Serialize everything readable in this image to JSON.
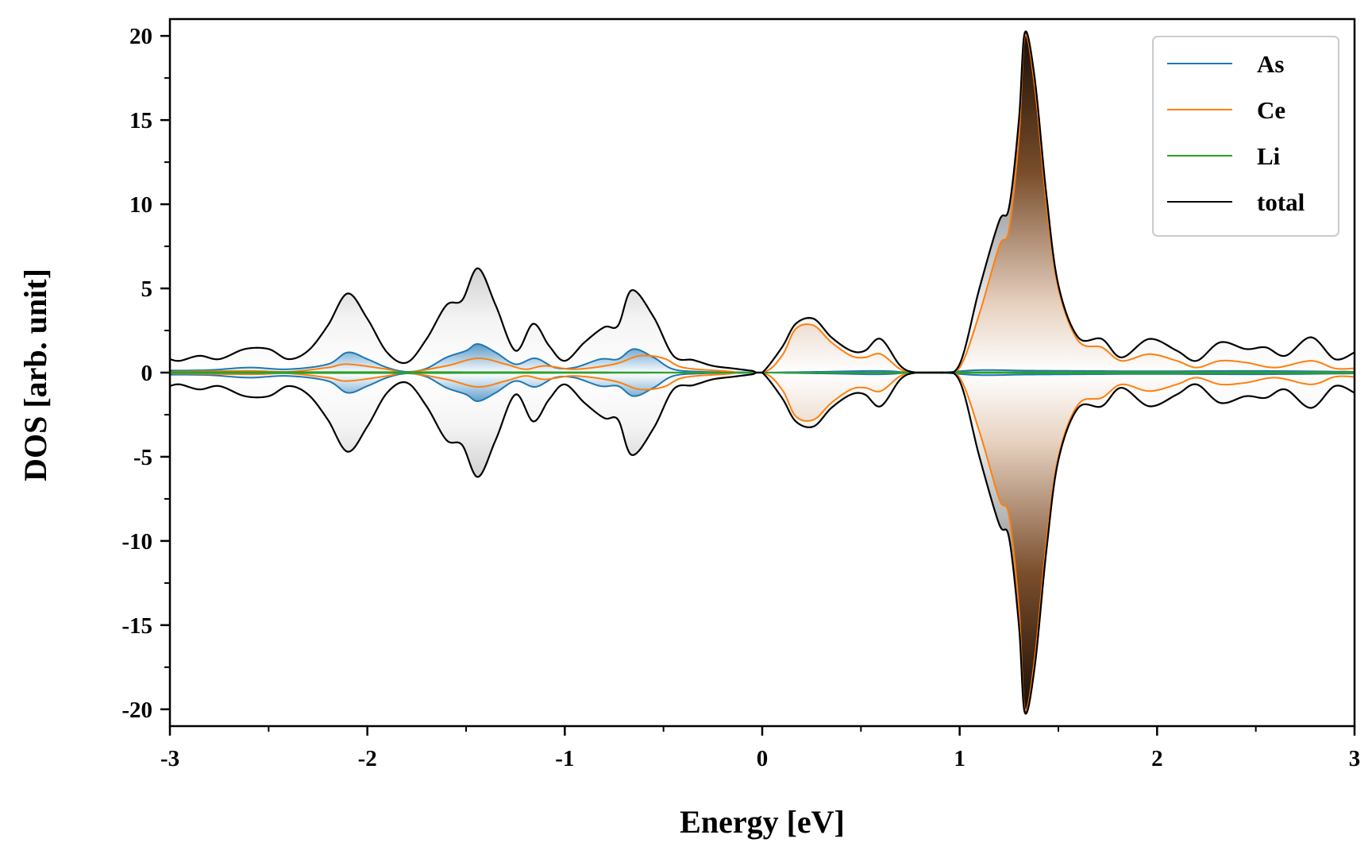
{
  "chart_data": {
    "type": "area",
    "xlabel": "Energy [eV]",
    "ylabel": "DOS [arb. unit]",
    "xlim": [
      -3,
      3
    ],
    "ylim": [
      -21,
      21
    ],
    "xticks": [
      -3,
      -2,
      -1,
      0,
      1,
      2,
      3
    ],
    "yticks": [
      -20,
      -15,
      -10,
      -5,
      0,
      5,
      10,
      15,
      20
    ],
    "grid": false,
    "legend_position": "top-right",
    "mirrored_spin_channels": true,
    "fills": {
      "total": "gray gradient, darker toward peaks",
      "Ce": "brown gradient, darker toward peaks",
      "As": "blue gradient"
    },
    "series": [
      {
        "name": "As",
        "color": "#1f77b4",
        "points": [
          [
            -3,
            0.12
          ],
          [
            -2.8,
            0.15
          ],
          [
            -2.6,
            0.3
          ],
          [
            -2.4,
            0.2
          ],
          [
            -2.2,
            0.5
          ],
          [
            -2.1,
            1.2
          ],
          [
            -2.0,
            0.8
          ],
          [
            -1.9,
            0.3
          ],
          [
            -1.8,
            0.05
          ],
          [
            -1.7,
            0.25
          ],
          [
            -1.6,
            0.9
          ],
          [
            -1.5,
            1.3
          ],
          [
            -1.44,
            1.7
          ],
          [
            -1.35,
            1.2
          ],
          [
            -1.25,
            0.5
          ],
          [
            -1.15,
            0.85
          ],
          [
            -1.05,
            0.3
          ],
          [
            -0.95,
            0.3
          ],
          [
            -0.82,
            0.8
          ],
          [
            -0.73,
            0.8
          ],
          [
            -0.65,
            1.4
          ],
          [
            -0.55,
            0.9
          ],
          [
            -0.45,
            0.2
          ],
          [
            -0.3,
            0.05
          ],
          [
            -0.1,
            0.02
          ],
          [
            0,
            0
          ],
          [
            0.3,
            0.05
          ],
          [
            0.6,
            0.1
          ],
          [
            0.75,
            0
          ],
          [
            0.9,
            0
          ],
          [
            1.1,
            0.15
          ],
          [
            1.33,
            0.12
          ],
          [
            1.6,
            0.1
          ],
          [
            2.0,
            0.08
          ],
          [
            2.5,
            0.1
          ],
          [
            3,
            0.05
          ]
        ]
      },
      {
        "name": "Ce",
        "color": "#ff7f0e",
        "points": [
          [
            -3,
            0.05
          ],
          [
            -2.6,
            0.1
          ],
          [
            -2.4,
            0.05
          ],
          [
            -2.2,
            0.3
          ],
          [
            -2.1,
            0.5
          ],
          [
            -1.9,
            0.2
          ],
          [
            -1.8,
            0.02
          ],
          [
            -1.6,
            0.4
          ],
          [
            -1.44,
            0.85
          ],
          [
            -1.3,
            0.5
          ],
          [
            -1.2,
            0.2
          ],
          [
            -1.1,
            0.4
          ],
          [
            -0.95,
            0.2
          ],
          [
            -0.75,
            0.5
          ],
          [
            -0.62,
            1.0
          ],
          [
            -0.5,
            0.85
          ],
          [
            -0.4,
            0.3
          ],
          [
            -0.2,
            0.1
          ],
          [
            0,
            0
          ],
          [
            0.1,
            1.0
          ],
          [
            0.17,
            2.6
          ],
          [
            0.26,
            2.8
          ],
          [
            0.35,
            1.8
          ],
          [
            0.45,
            1.0
          ],
          [
            0.52,
            0.9
          ],
          [
            0.6,
            1.1
          ],
          [
            0.7,
            0.2
          ],
          [
            0.78,
            0
          ],
          [
            0.9,
            0
          ],
          [
            1.0,
            0.3
          ],
          [
            1.1,
            3.5
          ],
          [
            1.2,
            7.5
          ],
          [
            1.25,
            8.5
          ],
          [
            1.3,
            14
          ],
          [
            1.33,
            20
          ],
          [
            1.38,
            17
          ],
          [
            1.44,
            10
          ],
          [
            1.5,
            5
          ],
          [
            1.6,
            1.9
          ],
          [
            1.72,
            1.5
          ],
          [
            1.82,
            0.7
          ],
          [
            1.96,
            1.1
          ],
          [
            2.1,
            0.7
          ],
          [
            2.2,
            0.3
          ],
          [
            2.32,
            0.7
          ],
          [
            2.45,
            0.6
          ],
          [
            2.6,
            0.3
          ],
          [
            2.78,
            0.7
          ],
          [
            2.9,
            0.25
          ],
          [
            3,
            0.25
          ]
        ]
      },
      {
        "name": "Li",
        "color": "#2ca02c",
        "points": [
          [
            -3,
            0.03
          ],
          [
            -2.0,
            0.03
          ],
          [
            -1.0,
            0.02
          ],
          [
            0,
            0
          ],
          [
            1.0,
            0.02
          ],
          [
            2.0,
            0.03
          ],
          [
            3,
            0.02
          ]
        ]
      },
      {
        "name": "total",
        "color": "#000000",
        "points": [
          [
            -3,
            0.8
          ],
          [
            -2.95,
            0.7
          ],
          [
            -2.85,
            1.0
          ],
          [
            -2.75,
            0.8
          ],
          [
            -2.62,
            1.4
          ],
          [
            -2.5,
            1.4
          ],
          [
            -2.4,
            0.8
          ],
          [
            -2.3,
            1.3
          ],
          [
            -2.2,
            2.8
          ],
          [
            -2.1,
            4.7
          ],
          [
            -2.0,
            3.2
          ],
          [
            -1.9,
            1.2
          ],
          [
            -1.8,
            0.6
          ],
          [
            -1.7,
            2.0
          ],
          [
            -1.6,
            4.0
          ],
          [
            -1.52,
            4.3
          ],
          [
            -1.44,
            6.2
          ],
          [
            -1.35,
            4.0
          ],
          [
            -1.25,
            1.3
          ],
          [
            -1.16,
            2.9
          ],
          [
            -1.08,
            1.6
          ],
          [
            -1.0,
            0.7
          ],
          [
            -0.9,
            1.8
          ],
          [
            -0.8,
            2.7
          ],
          [
            -0.73,
            2.8
          ],
          [
            -0.66,
            4.9
          ],
          [
            -0.55,
            3.3
          ],
          [
            -0.45,
            1.0
          ],
          [
            -0.35,
            0.75
          ],
          [
            -0.25,
            0.4
          ],
          [
            -0.15,
            0.25
          ],
          [
            -0.05,
            0.1
          ],
          [
            0,
            0
          ],
          [
            0.1,
            1.5
          ],
          [
            0.17,
            2.9
          ],
          [
            0.26,
            3.2
          ],
          [
            0.35,
            2.1
          ],
          [
            0.45,
            1.3
          ],
          [
            0.52,
            1.3
          ],
          [
            0.6,
            2.0
          ],
          [
            0.7,
            0.4
          ],
          [
            0.78,
            0
          ],
          [
            0.9,
            0
          ],
          [
            1.0,
            0.5
          ],
          [
            1.1,
            5.0
          ],
          [
            1.2,
            9.0
          ],
          [
            1.25,
            9.8
          ],
          [
            1.3,
            15
          ],
          [
            1.33,
            20.2
          ],
          [
            1.38,
            17.5
          ],
          [
            1.44,
            10.5
          ],
          [
            1.5,
            5.2
          ],
          [
            1.6,
            2.1
          ],
          [
            1.72,
            2.0
          ],
          [
            1.82,
            0.9
          ],
          [
            1.96,
            2.0
          ],
          [
            2.1,
            1.3
          ],
          [
            2.2,
            0.7
          ],
          [
            2.32,
            1.8
          ],
          [
            2.45,
            1.4
          ],
          [
            2.55,
            1.5
          ],
          [
            2.65,
            1.0
          ],
          [
            2.78,
            2.1
          ],
          [
            2.9,
            0.8
          ],
          [
            3,
            1.2
          ]
        ]
      }
    ]
  }
}
